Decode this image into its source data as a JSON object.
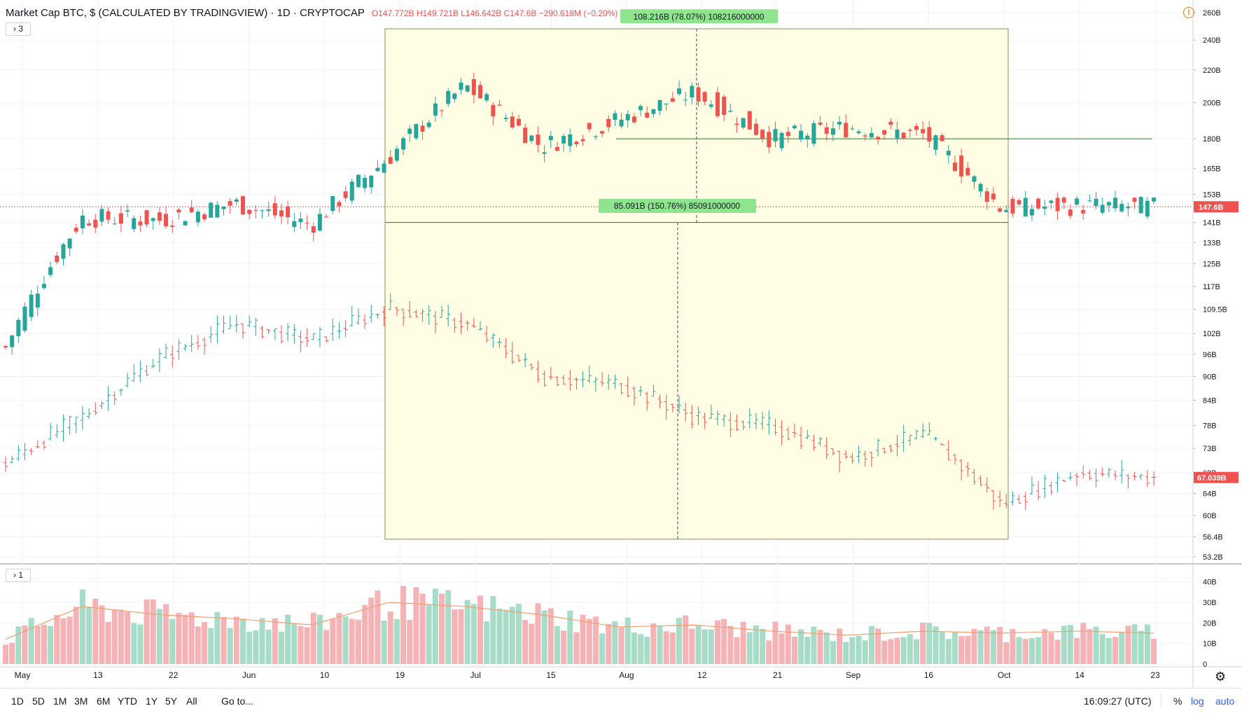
{
  "header": {
    "symbol": "Market Cap BTC, $ (CALCULATED BY TRADINGVIEW) · 1D · CRYPTOCAP",
    "ohlc": "O147.772B H149.721B L146.642B C147.6B −290.618M (−0.20%)",
    "indicator_toggle_main": "› 3",
    "indicator_toggle_volume": "› 1"
  },
  "icons": {
    "alert": "alert-circle-icon",
    "settings": "gear-icon"
  },
  "bottom_bar": {
    "ranges": [
      "1D",
      "5D",
      "1M",
      "3M",
      "6M",
      "YTD",
      "1Y",
      "5Y",
      "All"
    ],
    "goto": "Go to...",
    "clock": "16:09:27 (UTC)",
    "percent": "%",
    "log": "log",
    "auto": "auto"
  },
  "colors": {
    "up": "#26a69a",
    "down": "#ef5350",
    "range_box": "#fffde0",
    "measure_label": "#8ee58e",
    "price_label": "#ef5350"
  },
  "chart_data": {
    "type": "candlestick",
    "scale": "log",
    "price_axis_ticks": [
      "260B",
      "240B",
      "220B",
      "200B",
      "180B",
      "165B",
      "153B",
      "141B",
      "133B",
      "125B",
      "117B",
      "109.5B",
      "102B",
      "96B",
      "90B",
      "84B",
      "78B",
      "73B",
      "68B",
      "64B",
      "60B",
      "56.4B",
      "53.2B"
    ],
    "volume_axis_ticks": [
      "40B",
      "30B",
      "20B",
      "10B",
      "0"
    ],
    "time_axis_ticks": [
      "May",
      "13",
      "22",
      "Jun",
      "10",
      "19",
      "Jul",
      "15",
      "Aug",
      "12",
      "21",
      "Sep",
      "16",
      "Oct",
      "14",
      "23"
    ],
    "last_price_label": "147.6B",
    "secondary_price_label": "67.039B",
    "measure_top": "108.216B (78.07%) 108216000000",
    "measure_bottom": "85.091B (150.76%) 85091000000",
    "market_cap_series": [
      {
        "date": "May",
        "close": 98
      },
      {
        "date": "13",
        "close": 143
      },
      {
        "date": "22",
        "close": 142
      },
      {
        "date": "Jun",
        "close": 149
      },
      {
        "date": "10",
        "close": 140
      },
      {
        "date": "19",
        "close": 170
      },
      {
        "date": "Jul",
        "close": 210
      },
      {
        "date": "15",
        "close": 176
      },
      {
        "date": "Aug",
        "close": 190
      },
      {
        "date": "12",
        "close": 206
      },
      {
        "date": "21",
        "close": 180
      },
      {
        "date": "Sep",
        "close": 186
      },
      {
        "date": "16",
        "close": 182
      },
      {
        "date": "Oct",
        "close": 147
      },
      {
        "date": "14",
        "close": 148
      },
      {
        "date": "23",
        "close": 147.6
      }
    ],
    "secondary_series": [
      {
        "date": "May",
        "close": 70
      },
      {
        "date": "13",
        "close": 80
      },
      {
        "date": "22",
        "close": 95
      },
      {
        "date": "Jun",
        "close": 105
      },
      {
        "date": "10",
        "close": 100
      },
      {
        "date": "19",
        "close": 110
      },
      {
        "date": "Jul",
        "close": 105
      },
      {
        "date": "15",
        "close": 90
      },
      {
        "date": "Aug",
        "close": 88
      },
      {
        "date": "12",
        "close": 80
      },
      {
        "date": "21",
        "close": 78
      },
      {
        "date": "Sep",
        "close": 71
      },
      {
        "date": "16",
        "close": 76
      },
      {
        "date": "Oct",
        "close": 62
      },
      {
        "date": "14",
        "close": 68
      },
      {
        "date": "23",
        "close": 67
      }
    ],
    "volume_series": [
      {
        "date": "May",
        "value": 12
      },
      {
        "date": "13",
        "value": 28
      },
      {
        "date": "22",
        "value": 24
      },
      {
        "date": "Jun",
        "value": 22
      },
      {
        "date": "10",
        "value": 19
      },
      {
        "date": "19",
        "value": 30
      },
      {
        "date": "Jul",
        "value": 28
      },
      {
        "date": "15",
        "value": 24
      },
      {
        "date": "Aug",
        "value": 18
      },
      {
        "date": "12",
        "value": 19
      },
      {
        "date": "21",
        "value": 16
      },
      {
        "date": "Sep",
        "value": 14
      },
      {
        "date": "16",
        "value": 16
      },
      {
        "date": "Oct",
        "value": 15
      },
      {
        "date": "14",
        "value": 16
      },
      {
        "date": "23",
        "value": 15
      }
    ]
  }
}
